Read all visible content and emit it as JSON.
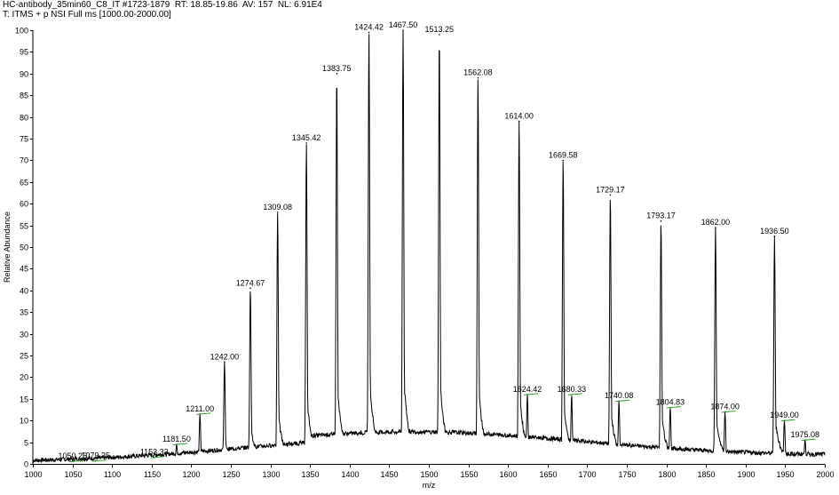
{
  "header": {
    "line1": "HC-antibody_35min60_C8_IT #1723-1879  RT: 18.85-19.86  AV: 157  NL: 6.91E4",
    "line2": "T: ITMS + p NSI Full ms [1000.00-2000.00]"
  },
  "chart_data": {
    "type": "line",
    "title": "",
    "xlabel": "m/z",
    "ylabel": "Relative Abundance",
    "xlim": [
      1000,
      2000
    ],
    "ylim": [
      0,
      100
    ],
    "x_ticks": [
      1000,
      1050,
      1100,
      1150,
      1200,
      1250,
      1300,
      1350,
      1400,
      1450,
      1500,
      1550,
      1600,
      1650,
      1700,
      1750,
      1800,
      1850,
      1900,
      1950,
      2000
    ],
    "y_ticks": [
      0,
      5,
      10,
      15,
      20,
      25,
      30,
      35,
      40,
      45,
      50,
      55,
      60,
      65,
      70,
      75,
      80,
      85,
      90,
      95,
      100
    ],
    "grid": false,
    "legend": "none",
    "peaks": [
      {
        "mz": 1050.25,
        "label": "1050.25",
        "intensity": 0.6
      },
      {
        "mz": 1079.25,
        "label": "1079.25",
        "intensity": 0.7
      },
      {
        "mz": 1153.33,
        "label": "1153.33",
        "intensity": 1.5
      },
      {
        "mz": 1181.5,
        "label": "1181.50",
        "intensity": 4.5
      },
      {
        "mz": 1211.0,
        "label": "1211.00",
        "intensity": 11.5
      },
      {
        "mz": 1242.0,
        "label": "1242.00",
        "intensity": 23.5
      },
      {
        "mz": 1274.67,
        "label": "1274.67",
        "intensity": 40.5
      },
      {
        "mz": 1309.08,
        "label": "1309.08",
        "intensity": 58
      },
      {
        "mz": 1345.42,
        "label": "1345.42",
        "intensity": 74
      },
      {
        "mz": 1383.75,
        "label": "1383.75",
        "intensity": 90
      },
      {
        "mz": 1424.42,
        "label": "1424.42",
        "intensity": 99.5
      },
      {
        "mz": 1467.5,
        "label": "1467.50",
        "intensity": 100
      },
      {
        "mz": 1513.25,
        "label": "1513.25",
        "intensity": 99
      },
      {
        "mz": 1562.08,
        "label": "1562.08",
        "intensity": 89
      },
      {
        "mz": 1614.0,
        "label": "1614.00",
        "intensity": 79
      },
      {
        "mz": 1624.42,
        "label": "1624.42",
        "intensity": 16
      },
      {
        "mz": 1669.58,
        "label": "1669.58",
        "intensity": 70
      },
      {
        "mz": 1680.33,
        "label": "1680.33",
        "intensity": 16
      },
      {
        "mz": 1729.17,
        "label": "1729.17",
        "intensity": 62
      },
      {
        "mz": 1740.08,
        "label": "1740.08",
        "intensity": 14.5
      },
      {
        "mz": 1793.17,
        "label": "1793.17",
        "intensity": 56
      },
      {
        "mz": 1804.83,
        "label": "1804.83",
        "intensity": 13
      },
      {
        "mz": 1862.0,
        "label": "1862.00",
        "intensity": 54.5
      },
      {
        "mz": 1874.0,
        "label": "1874.00",
        "intensity": 12
      },
      {
        "mz": 1936.5,
        "label": "1936.50",
        "intensity": 52.5
      },
      {
        "mz": 1949.0,
        "label": "1949.00",
        "intensity": 10
      },
      {
        "mz": 1975.08,
        "label": "1975.08",
        "intensity": 5.5
      }
    ],
    "colors": {
      "trace": "#000000",
      "axes": "#000000",
      "marker": "#2e9e2e",
      "background": "#ffffff"
    }
  }
}
